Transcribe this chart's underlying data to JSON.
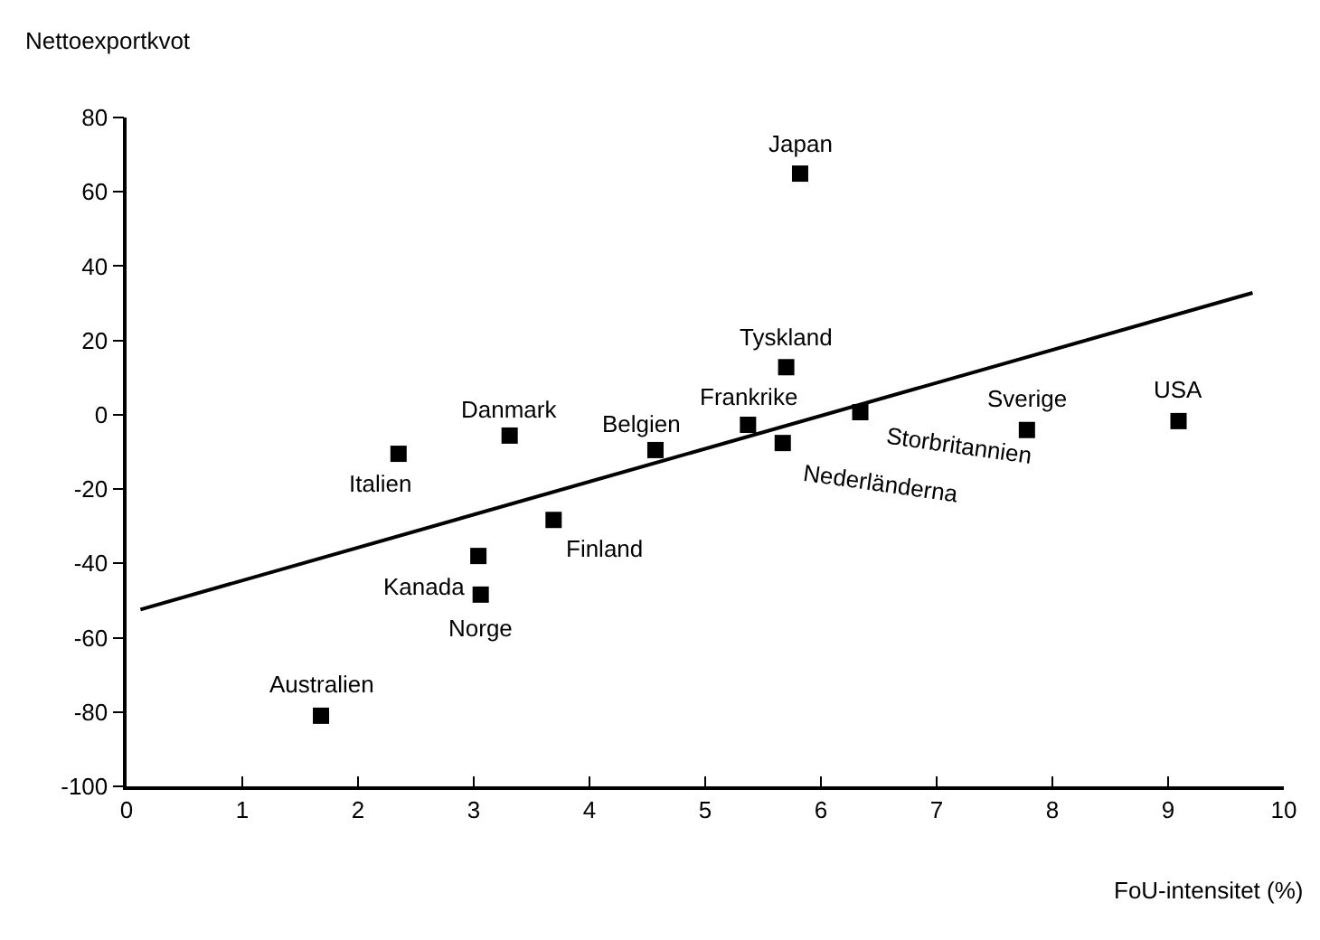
{
  "chart_data": {
    "type": "scatter",
    "xlabel": "FoU-intensitet (%)",
    "ylabel": "Nettoexportkvot",
    "xlim": [
      0,
      10
    ],
    "xticks": [
      0,
      1,
      2,
      3,
      4,
      5,
      6,
      7,
      8,
      9,
      10
    ],
    "ylim": [
      -100,
      80
    ],
    "yticks": [
      -100,
      -80,
      -60,
      -40,
      -20,
      0,
      20,
      40,
      60,
      80
    ],
    "marker": "square",
    "series": [
      {
        "color": "#000000",
        "x": [
          2.35,
          3.31,
          4.57,
          5.37,
          5.67,
          5.7,
          5.82,
          6.34,
          7.78,
          9.09,
          3.69,
          3.04,
          3.06,
          1.68
        ],
        "values": [
          -10.5,
          -5.6,
          -9.5,
          -2.7,
          -7.6,
          12.8,
          64.9,
          0.7,
          -4.1,
          -1.7,
          -28.3,
          -38,
          -48.4,
          -81
        ]
      },
      {
        "type": "line",
        "color": "#000000",
        "x": [
          0.12,
          9.73
        ],
        "values": [
          -52.4,
          32.8
        ],
        "marker": "none"
      }
    ],
    "annotations": [
      {
        "text": "Italien",
        "x": 2.35,
        "y": -10.5
      },
      {
        "text": "Danmark",
        "x": 3.31,
        "y": -5.6
      },
      {
        "text": "Belgien",
        "x": 4.57,
        "y": -9.5
      },
      {
        "text": "Frankrike",
        "x": 5.37,
        "y": -2.7
      },
      {
        "text": "Nederländerna",
        "x": 5.67,
        "y": -7.6
      },
      {
        "text": "Tyskland",
        "x": 5.7,
        "y": 12.8
      },
      {
        "text": "Japan",
        "x": 5.82,
        "y": 64.9
      },
      {
        "text": "Storbritannien",
        "x": 6.34,
        "y": 0.7
      },
      {
        "text": "Sverige",
        "x": 7.78,
        "y": -4.1
      },
      {
        "text": "USA",
        "x": 9.09,
        "y": -1.7
      },
      {
        "text": "Finland",
        "x": 3.69,
        "y": -28.3
      },
      {
        "text": "Kanada",
        "x": 3.04,
        "y": -38
      },
      {
        "text": "Norge",
        "x": 3.06,
        "y": -48.4
      },
      {
        "text": "Australien",
        "x": 1.68,
        "y": -81
      }
    ]
  }
}
